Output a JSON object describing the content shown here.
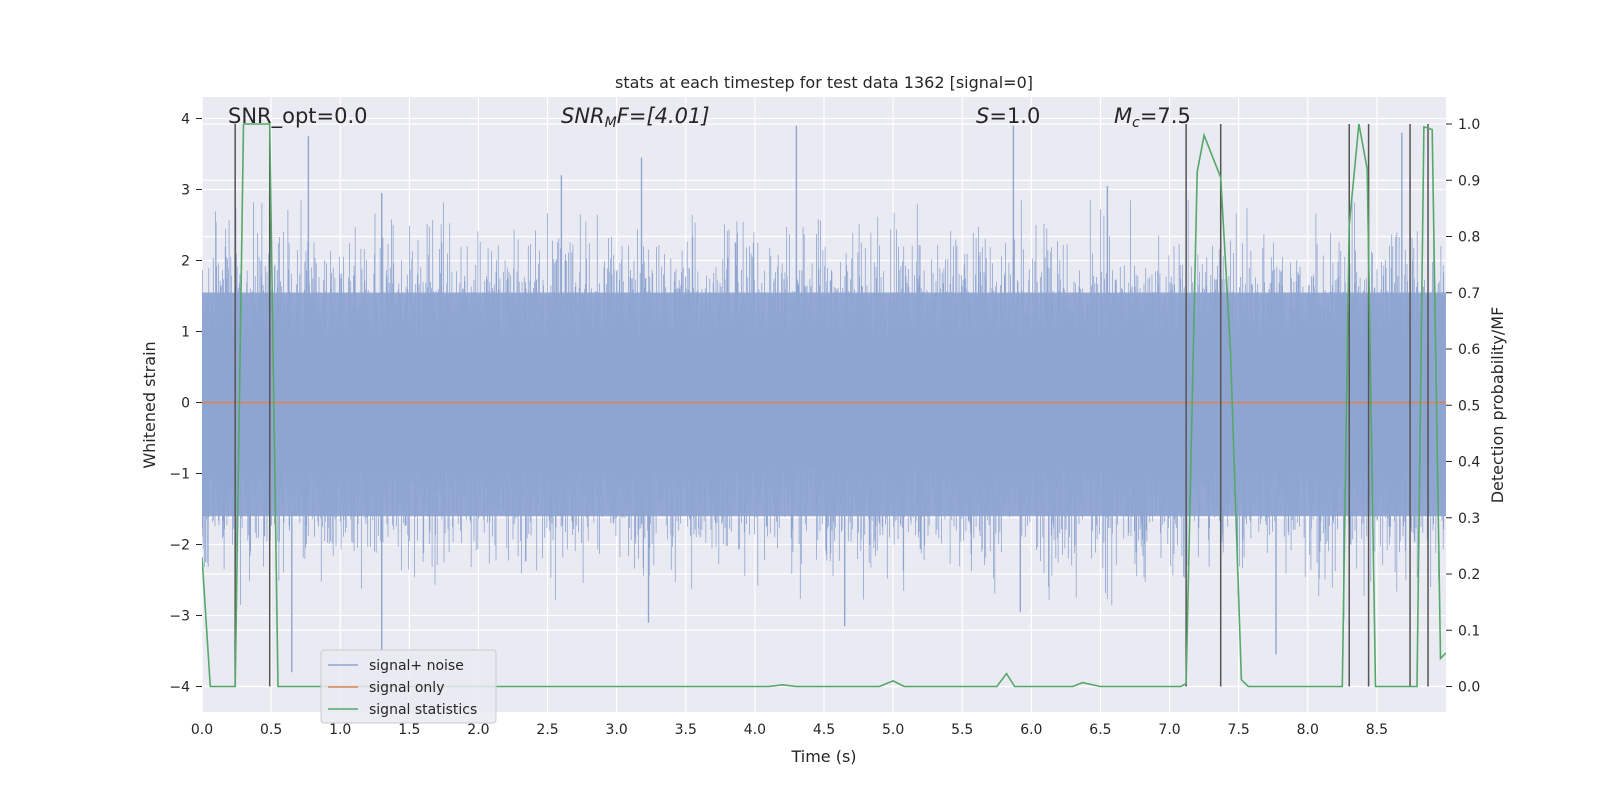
{
  "chart_data": {
    "type": "line",
    "title": "stats at each timestep for test data 1362 [signal=0]",
    "xlabel": "Time (s)",
    "ylabel": "Whitened strain",
    "y2label": "Detection probability/MF",
    "xlim": [
      0.0,
      9.0
    ],
    "ylim": [
      -4.4,
      4.3
    ],
    "y2lim": [
      -0.05,
      1.05
    ],
    "x_ticks": [
      "0.0",
      "0.5",
      "1.0",
      "1.5",
      "2.0",
      "2.5",
      "3.0",
      "3.5",
      "4.0",
      "4.5",
      "5.0",
      "5.5",
      "6.0",
      "6.5",
      "7.0",
      "7.5",
      "8.0",
      "8.5"
    ],
    "y_ticks": [
      "4",
      "3",
      "2",
      "1",
      "0",
      "−1",
      "−2",
      "−3",
      "−4"
    ],
    "y2_ticks": [
      "1.0",
      "0.9",
      "0.8",
      "0.7",
      "0.6",
      "0.5",
      "0.4",
      "0.3",
      "0.2",
      "0.1",
      "0.0"
    ],
    "grid": true,
    "legend_position": "lower-left",
    "annotations": {
      "snr_opt": "SNR_opt=0.0",
      "snr_mf_base": "SNR",
      "snr_mf_sub": "M",
      "snr_mf_rest": "F=[4.01]",
      "s_base": "S",
      "s_rest": "=1.0",
      "mc_base": "M",
      "mc_sub": "c",
      "mc_rest": "=7.5"
    },
    "series": [
      {
        "name": "signal+ noise",
        "color": "#8fa5d1",
        "description_range": [
          -3.8,
          3.9
        ],
        "band": {
          "lower": -1.6,
          "upper": 1.55
        },
        "peaks": [
          {
            "x": 0.77,
            "y": 3.75
          },
          {
            "x": 1.3,
            "y": 2.95
          },
          {
            "x": 2.6,
            "y": 3.2
          },
          {
            "x": 3.18,
            "y": 3.45
          },
          {
            "x": 4.3,
            "y": 3.9
          },
          {
            "x": 5.87,
            "y": 3.9
          },
          {
            "x": 6.55,
            "y": 3.05
          },
          {
            "x": 8.68,
            "y": 3.8
          }
        ],
        "troughs": [
          {
            "x": 0.65,
            "y": -3.8
          },
          {
            "x": 1.3,
            "y": -3.5
          },
          {
            "x": 3.23,
            "y": -3.1
          },
          {
            "x": 4.65,
            "y": -3.15
          },
          {
            "x": 5.92,
            "y": -2.95
          },
          {
            "x": 7.77,
            "y": -3.55
          },
          {
            "x": 8.26,
            "y": -3.05
          }
        ]
      },
      {
        "name": "signal only",
        "color": "#dd8452",
        "y": 0.0
      },
      {
        "name": "signal statistics",
        "color": "#55a868",
        "axis": "right",
        "points": [
          [
            0.0,
            0.23
          ],
          [
            0.06,
            0.0
          ],
          [
            0.24,
            0.0
          ],
          [
            0.3,
            1.0
          ],
          [
            0.49,
            1.0
          ],
          [
            0.55,
            0.0
          ],
          [
            4.1,
            0.0
          ],
          [
            4.2,
            0.003
          ],
          [
            4.3,
            0.0
          ],
          [
            4.9,
            0.0
          ],
          [
            5.0,
            0.01
          ],
          [
            5.08,
            0.0
          ],
          [
            5.75,
            0.0
          ],
          [
            5.82,
            0.023
          ],
          [
            5.88,
            0.0
          ],
          [
            6.3,
            0.0
          ],
          [
            6.37,
            0.007
          ],
          [
            6.5,
            0.0
          ],
          [
            7.08,
            0.0
          ],
          [
            7.12,
            0.005
          ],
          [
            7.2,
            0.915
          ],
          [
            7.25,
            0.98
          ],
          [
            7.37,
            0.905
          ],
          [
            7.44,
            0.6
          ],
          [
            7.52,
            0.012
          ],
          [
            7.57,
            0.0
          ],
          [
            8.25,
            0.0
          ],
          [
            8.3,
            0.82
          ],
          [
            8.37,
            1.0
          ],
          [
            8.43,
            0.92
          ],
          [
            8.49,
            0.0
          ],
          [
            8.65,
            0.0
          ],
          [
            8.79,
            0.0
          ],
          [
            8.84,
            0.995
          ],
          [
            8.9,
            0.99
          ],
          [
            8.96,
            0.05
          ],
          [
            9.0,
            0.06
          ]
        ]
      }
    ],
    "detection_markers": [
      {
        "x": 0.24,
        "label": ""
      },
      {
        "x": 0.49,
        "label": ""
      },
      {
        "x": 7.12,
        "label": ""
      },
      {
        "x": 7.37,
        "label": ""
      },
      {
        "x": 8.3,
        "label": ""
      },
      {
        "x": 8.44,
        "label": ""
      },
      {
        "x": 8.74,
        "label": ""
      },
      {
        "x": 8.87,
        "label": ""
      }
    ]
  },
  "legend": {
    "items": [
      {
        "label": "signal+ noise"
      },
      {
        "label": "signal only"
      },
      {
        "label": "signal statistics"
      }
    ]
  }
}
